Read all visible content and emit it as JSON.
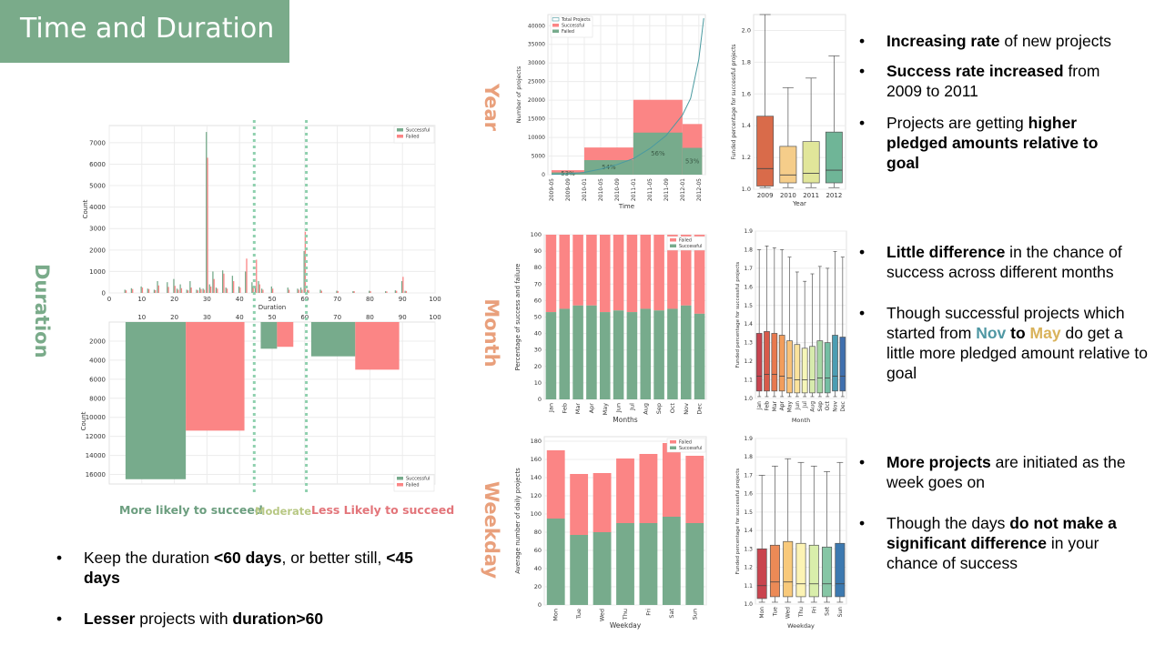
{
  "slide_title": "Time and Duration",
  "section_labels": {
    "duration": "Duration",
    "year": "Year",
    "month": "Month",
    "weekday": "Weekday"
  },
  "colors": {
    "successful": "#77ab8c",
    "failed": "#fb8585",
    "banner": "#7aab8a",
    "section_label": "#e9a07c",
    "duration_label": "#7aab8a",
    "nov": "#4f97a3",
    "may": "#d9b25a"
  },
  "duration_zones": {
    "likely": "More likely to succeed",
    "moderate": "Moderate",
    "less": "Less  Likely to succeed"
  },
  "bottom_bullets": [
    {
      "parts": [
        {
          "t": "Keep the duration ",
          "b": false
        },
        {
          "t": "<60 days",
          "b": true
        },
        {
          "t": ", or better still, ",
          "b": false
        },
        {
          "t": "<45 days",
          "b": true
        }
      ]
    },
    {
      "parts": [
        {
          "t": "Lesser",
          "b": true
        },
        {
          "t": " projects with ",
          "b": false
        },
        {
          "t": "duration>60",
          "b": true
        }
      ]
    }
  ],
  "year_bullets": [
    {
      "parts": [
        {
          "t": "Increasing rate",
          "b": true
        },
        {
          "t": " of new projects",
          "b": false
        }
      ]
    },
    {
      "parts": [
        {
          "t": "Success rate increased",
          "b": true
        },
        {
          "t": " from 2009 to 2011",
          "b": false
        }
      ]
    },
    {
      "parts": [
        {
          "t": "Projects are getting ",
          "b": false
        },
        {
          "t": "higher pledged amounts relative to goal",
          "b": true
        }
      ]
    }
  ],
  "month_bullets": [
    {
      "parts": [
        {
          "t": "Little difference",
          "b": true
        },
        {
          "t": " in the chance of success across different months",
          "b": false
        }
      ]
    },
    {
      "parts": [
        {
          "t": "Though successful projects which started from ",
          "b": false
        },
        {
          "t": "Nov",
          "b": true,
          "c": "nov"
        },
        {
          "t": " to ",
          "b": true
        },
        {
          "t": "May",
          "b": true,
          "c": "may"
        },
        {
          "t": " do get a little more pledged amount relative to goal",
          "b": false
        }
      ]
    }
  ],
  "weekday_bullets": [
    {
      "parts": [
        {
          "t": "More projects",
          "b": true
        },
        {
          "t": " are initiated as the week goes on",
          "b": false
        }
      ]
    },
    {
      "parts": [
        {
          "t": "Though the days ",
          "b": false
        },
        {
          "t": "do not make a significant difference",
          "b": true
        },
        {
          "t": " in your chance of success",
          "b": false
        }
      ]
    }
  ],
  "chart_data": [
    {
      "id": "duration_hist",
      "type": "bar",
      "xlabel": "Duration",
      "ylabel": "Count",
      "xlim": [
        0,
        100
      ],
      "ylim": [
        0,
        7800
      ],
      "xticks": [
        0,
        10,
        20,
        30,
        40,
        50,
        60,
        70,
        80,
        90,
        100
      ],
      "yticks": [
        0,
        1000,
        2000,
        3000,
        4000,
        5000,
        6000,
        7000
      ],
      "legend": [
        "Successful",
        "Failed"
      ],
      "legend_position": "top-right",
      "x": [
        5,
        7,
        10,
        12,
        14,
        15,
        18,
        20,
        21,
        22,
        24,
        25,
        27,
        28,
        29,
        30,
        31,
        32,
        33,
        35,
        36,
        38,
        40,
        42,
        44,
        45,
        46,
        47,
        50,
        55,
        58,
        59,
        60,
        61,
        65,
        70,
        75,
        80,
        85,
        88,
        90,
        91
      ],
      "successful": [
        150,
        220,
        300,
        200,
        150,
        550,
        500,
        650,
        200,
        400,
        150,
        550,
        150,
        250,
        200,
        7500,
        400,
        1000,
        250,
        1050,
        250,
        800,
        300,
        1000,
        500,
        300,
        550,
        200,
        300,
        250,
        200,
        250,
        1950,
        150,
        150,
        100,
        80,
        100,
        80,
        120,
        550,
        100
      ],
      "failed": [
        120,
        180,
        250,
        180,
        130,
        350,
        280,
        330,
        150,
        220,
        120,
        250,
        120,
        180,
        150,
        6300,
        300,
        650,
        200,
        900,
        200,
        550,
        250,
        1600,
        300,
        1550,
        400,
        150,
        200,
        150,
        150,
        150,
        2850,
        120,
        100,
        90,
        80,
        80,
        70,
        100,
        750,
        90
      ]
    },
    {
      "id": "duration_binned",
      "type": "bar",
      "ylabel": "Count",
      "xlim": [
        0,
        100
      ],
      "ylim": [
        0,
        17000
      ],
      "xticks": [
        10,
        20,
        30,
        40,
        50,
        60,
        70,
        80,
        90,
        100
      ],
      "yticks": [
        2000,
        4000,
        6000,
        8000,
        10000,
        12000,
        14000,
        16000
      ],
      "legend": [
        "Successful",
        "Failed"
      ],
      "legend_position": "bottom-right",
      "bins": [
        [
          5,
          23.5,
          16500,
          "s"
        ],
        [
          23.5,
          41.5,
          11400,
          "f"
        ],
        [
          46.5,
          51.5,
          2800,
          "s"
        ],
        [
          51.5,
          56.5,
          2600,
          "f"
        ],
        [
          62,
          75.5,
          3600,
          "s"
        ],
        [
          75.5,
          89,
          5000,
          "f"
        ]
      ],
      "dividers": [
        44.5,
        60.5
      ]
    },
    {
      "id": "year_hist",
      "type": "bar",
      "xlabel": "Time",
      "ylabel": "Number of projects",
      "ylim": [
        0,
        43000
      ],
      "yticks": [
        0,
        5000,
        10000,
        15000,
        20000,
        25000,
        30000,
        35000,
        40000
      ],
      "xticks": [
        "2009-05",
        "2009-09",
        "2010-01",
        "2010-05",
        "2010-09",
        "2011-01",
        "2011-05",
        "2011-09",
        "2012-01",
        "2012-05"
      ],
      "legend": [
        "Total Projects",
        "Successful",
        "Failed"
      ],
      "legend_position": "top-left",
      "bins": [
        {
          "x0": 0,
          "x1": 2,
          "total": 1200,
          "successful": 600,
          "label": "53%"
        },
        {
          "x0": 2,
          "x1": 5,
          "total": 7300,
          "successful": 3900,
          "label": "54%"
        },
        {
          "x0": 5,
          "x1": 8,
          "total": 20100,
          "successful": 11300,
          "label": "56%"
        },
        {
          "x0": 8,
          "x1": 9.2,
          "total": 13600,
          "successful": 7200,
          "label": "53%"
        }
      ],
      "total_curve": [
        [
          0,
          100
        ],
        [
          1,
          250
        ],
        [
          2,
          600
        ],
        [
          3,
          1500
        ],
        [
          4,
          2700
        ],
        [
          5,
          4300
        ],
        [
          6,
          7000
        ],
        [
          7,
          10500
        ],
        [
          8,
          16000
        ],
        [
          8.5,
          20500
        ],
        [
          9,
          31000
        ],
        [
          9.3,
          42000
        ]
      ]
    },
    {
      "id": "year_box",
      "type": "box",
      "xlabel": "Year",
      "ylabel": "Funded percentage for successful projects",
      "ylim": [
        1.0,
        2.1
      ],
      "yticks": [
        1.0,
        1.2,
        1.4,
        1.6,
        1.8,
        2.0
      ],
      "categories": [
        "2009",
        "2010",
        "2011",
        "2012"
      ],
      "boxes": [
        [
          1.01,
          1.02,
          1.13,
          1.46,
          2.1
        ],
        [
          1.01,
          1.04,
          1.09,
          1.27,
          1.64
        ],
        [
          1.01,
          1.04,
          1.1,
          1.3,
          1.7
        ],
        [
          1.01,
          1.04,
          1.12,
          1.36,
          1.84
        ]
      ],
      "box_colors": [
        "#d96b4a",
        "#f5cd8a",
        "#e1e69a",
        "#6fb597"
      ]
    },
    {
      "id": "month_stack",
      "type": "bar",
      "xlabel": "Months",
      "ylabel": "Percentage of success and failure",
      "ylim": [
        0,
        100
      ],
      "yticks": [
        0,
        10,
        20,
        30,
        40,
        50,
        60,
        70,
        80,
        90,
        100
      ],
      "categories": [
        "Jan",
        "Feb",
        "Mar",
        "Apr",
        "May",
        "Jun",
        "Jul",
        "Aug",
        "Sep",
        "Oct",
        "Nov",
        "Dec"
      ],
      "successful": [
        53,
        55,
        57,
        57,
        53,
        54,
        53,
        55,
        54,
        55,
        57,
        52
      ],
      "legend": [
        "Failed",
        "Successful"
      ],
      "legend_position": "top-right"
    },
    {
      "id": "month_box",
      "type": "box",
      "xlabel": "Month",
      "ylabel": "Funded percentage for successful projects",
      "ylim": [
        1.0,
        1.9
      ],
      "yticks": [
        1.0,
        1.1,
        1.2,
        1.3,
        1.4,
        1.5,
        1.6,
        1.7,
        1.8,
        1.9
      ],
      "categories": [
        "Jan",
        "Feb",
        "Mar",
        "Apr",
        "May",
        "Jun",
        "Jul",
        "Aug",
        "Sep",
        "Oct",
        "Nov",
        "Dec"
      ],
      "boxes": [
        [
          1.01,
          1.04,
          1.12,
          1.35,
          1.8
        ],
        [
          1.01,
          1.04,
          1.13,
          1.36,
          1.82
        ],
        [
          1.01,
          1.04,
          1.13,
          1.35,
          1.81
        ],
        [
          1.01,
          1.04,
          1.12,
          1.34,
          1.8
        ],
        [
          1.01,
          1.03,
          1.11,
          1.31,
          1.76
        ],
        [
          1.01,
          1.03,
          1.1,
          1.29,
          1.68
        ],
        [
          1.01,
          1.03,
          1.1,
          1.27,
          1.63
        ],
        [
          1.01,
          1.03,
          1.1,
          1.28,
          1.67
        ],
        [
          1.01,
          1.03,
          1.11,
          1.31,
          1.71
        ],
        [
          1.01,
          1.03,
          1.11,
          1.3,
          1.7
        ],
        [
          1.01,
          1.04,
          1.12,
          1.34,
          1.79
        ],
        [
          1.01,
          1.04,
          1.12,
          1.33,
          1.76
        ]
      ],
      "box_colors": [
        "#c7434f",
        "#d85a4a",
        "#e8794e",
        "#f29d5c",
        "#f8c279",
        "#fbe39c",
        "#f6f6b8",
        "#d7ebad",
        "#a7d6a4",
        "#74bea3",
        "#4c9db2",
        "#3f6fae"
      ]
    },
    {
      "id": "weekday_stack",
      "type": "bar",
      "xlabel": "Weekday",
      "ylabel": "Average number of daily projects",
      "ylim": [
        0,
        185
      ],
      "yticks": [
        0,
        20,
        40,
        60,
        80,
        100,
        120,
        140,
        160,
        180
      ],
      "categories": [
        "Mon",
        "Tue",
        "Wed",
        "Thu",
        "Fri",
        "Sat",
        "Sun"
      ],
      "total": [
        170,
        144,
        145,
        161,
        166,
        178,
        164
      ],
      "successful": [
        95,
        77,
        80,
        90,
        90,
        97,
        90
      ],
      "legend": [
        "Failed",
        "Successful"
      ],
      "legend_position": "top-right"
    },
    {
      "id": "weekday_box",
      "type": "box",
      "xlabel": "Weekday",
      "ylabel": "Funded percentage for successful projects",
      "ylim": [
        1.0,
        1.9
      ],
      "yticks": [
        1.0,
        1.1,
        1.2,
        1.3,
        1.4,
        1.5,
        1.6,
        1.7,
        1.8,
        1.9
      ],
      "categories": [
        "Mon",
        "Tue",
        "Wed",
        "Thu",
        "Fri",
        "Sat",
        "Sun"
      ],
      "boxes": [
        [
          1.01,
          1.03,
          1.1,
          1.3,
          1.7
        ],
        [
          1.01,
          1.04,
          1.12,
          1.32,
          1.75
        ],
        [
          1.01,
          1.04,
          1.12,
          1.34,
          1.79
        ],
        [
          1.01,
          1.04,
          1.11,
          1.33,
          1.77
        ],
        [
          1.01,
          1.04,
          1.11,
          1.32,
          1.75
        ],
        [
          1.01,
          1.04,
          1.11,
          1.31,
          1.72
        ],
        [
          1.01,
          1.04,
          1.11,
          1.33,
          1.77
        ]
      ],
      "box_colors": [
        "#c9444e",
        "#ec8a56",
        "#f8c97a",
        "#fcf3b4",
        "#d9eeab",
        "#86c6a5",
        "#3c79b0"
      ]
    }
  ]
}
